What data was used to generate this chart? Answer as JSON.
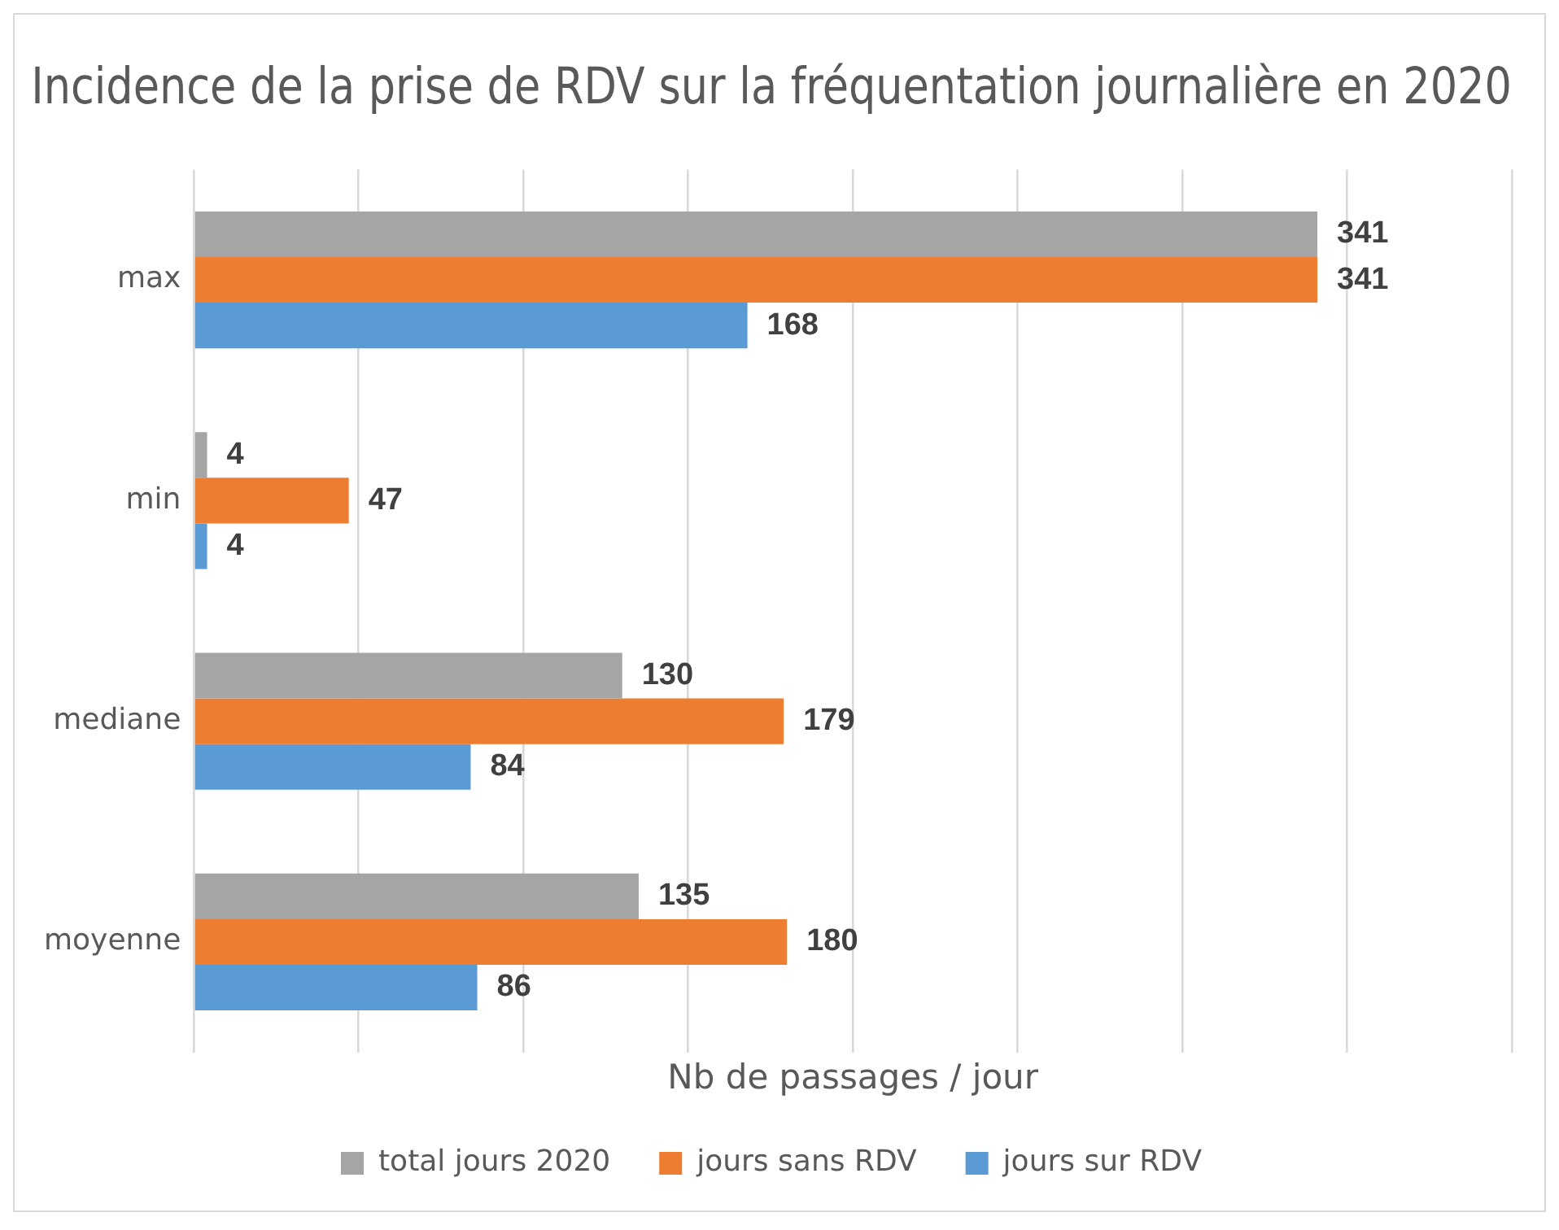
{
  "chart_data": {
    "type": "bar",
    "orientation": "horizontal",
    "title": "Incidence de la prise de RDV sur la fréquentation journalière en 2020",
    "xlabel": "Nb de passages / jour",
    "categories": [
      "max",
      "min",
      "mediane",
      "moyenne"
    ],
    "series": [
      {
        "name": "total jours 2020",
        "color": "#a5a5a5",
        "values": [
          341,
          4,
          130,
          135
        ]
      },
      {
        "name": "jours sans RDV",
        "color": "#ed7d31",
        "values": [
          341,
          47,
          179,
          180
        ]
      },
      {
        "name": "jours sur RDV",
        "color": "#5b9bd5",
        "values": [
          168,
          4,
          84,
          86
        ]
      }
    ],
    "xlim": [
      0,
      400
    ],
    "xticks": [
      {
        "value": 0,
        "label": null
      },
      {
        "value": 50,
        "label": null
      },
      {
        "value": 100,
        "label": null
      },
      {
        "value": 150,
        "label": null
      },
      {
        "value": 200,
        "label": null
      },
      {
        "value": 250,
        "label": null
      },
      {
        "value": 300,
        "label": null
      },
      {
        "value": 350,
        "label": null
      },
      {
        "value": 400,
        "label": null
      }
    ],
    "tick_labels": "y",
    "grid": "x",
    "legend": "bottom",
    "data_labels": true
  }
}
